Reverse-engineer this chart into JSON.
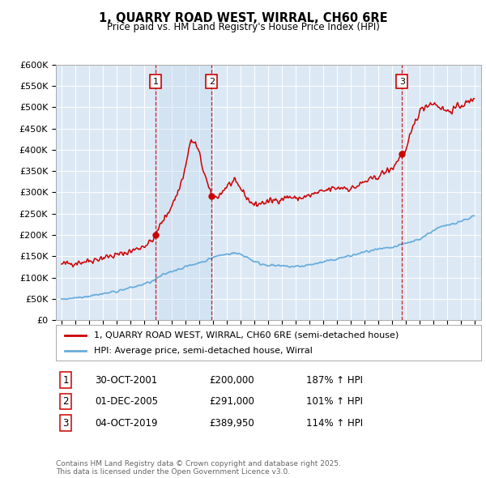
{
  "title": "1, QUARRY ROAD WEST, WIRRAL, CH60 6RE",
  "subtitle": "Price paid vs. HM Land Registry's House Price Index (HPI)",
  "ylim": [
    0,
    600000
  ],
  "yticks": [
    0,
    50000,
    100000,
    150000,
    200000,
    250000,
    300000,
    350000,
    400000,
    450000,
    500000,
    550000,
    600000
  ],
  "ytick_labels": [
    "£0",
    "£50K",
    "£100K",
    "£150K",
    "£200K",
    "£250K",
    "£300K",
    "£350K",
    "£400K",
    "£450K",
    "£500K",
    "£550K",
    "£600K"
  ],
  "background_color": "#ffffff",
  "plot_bg_color": "#dce9f5",
  "grid_color": "#ffffff",
  "sale_color": "#cc0000",
  "hpi_color": "#6aaddc",
  "vline_color": "#cc0000",
  "shade_color": "#c5d9ed",
  "transactions": [
    {
      "label": 1,
      "date_num": 2001.83,
      "price": 200000
    },
    {
      "label": 2,
      "date_num": 2005.92,
      "price": 291000
    },
    {
      "label": 3,
      "date_num": 2019.75,
      "price": 389950
    }
  ],
  "legend_sale_label": "1, QUARRY ROAD WEST, WIRRAL, CH60 6RE (semi-detached house)",
  "legend_hpi_label": "HPI: Average price, semi-detached house, Wirral",
  "table_rows": [
    {
      "num": 1,
      "date": "30-OCT-2001",
      "price": "£200,000",
      "hpi": "187% ↑ HPI"
    },
    {
      "num": 2,
      "date": "01-DEC-2005",
      "price": "£291,000",
      "hpi": "101% ↑ HPI"
    },
    {
      "num": 3,
      "date": "04-OCT-2019",
      "price": "£389,950",
      "hpi": "114% ↑ HPI"
    }
  ],
  "footer": "Contains HM Land Registry data © Crown copyright and database right 2025.\nThis data is licensed under the Open Government Licence v3.0.",
  "xlim_start": 1994.6,
  "xlim_end": 2025.5,
  "hpi_points_x": [
    1995.0,
    1995.5,
    1996.0,
    1996.5,
    1997.0,
    1997.5,
    1998.0,
    1998.5,
    1999.0,
    1999.5,
    2000.0,
    2000.5,
    2001.0,
    2001.5,
    2001.83,
    2002.0,
    2002.5,
    2003.0,
    2003.5,
    2004.0,
    2004.5,
    2005.0,
    2005.5,
    2005.92,
    2006.0,
    2006.5,
    2007.0,
    2007.5,
    2008.0,
    2008.5,
    2009.0,
    2009.5,
    2010.0,
    2010.5,
    2011.0,
    2011.5,
    2012.0,
    2012.5,
    2013.0,
    2013.5,
    2014.0,
    2014.5,
    2015.0,
    2015.5,
    2016.0,
    2016.5,
    2017.0,
    2017.5,
    2018.0,
    2018.5,
    2019.0,
    2019.5,
    2019.75,
    2020.0,
    2020.5,
    2021.0,
    2021.5,
    2022.0,
    2022.5,
    2023.0,
    2023.5,
    2024.0,
    2024.5,
    2025.0
  ],
  "hpi_points_y": [
    50000,
    51000,
    53000,
    55000,
    57000,
    60000,
    62000,
    65000,
    68000,
    72000,
    76000,
    80000,
    85000,
    90000,
    95000,
    100000,
    108000,
    115000,
    120000,
    125000,
    130000,
    135000,
    140000,
    145000,
    148000,
    152000,
    155000,
    158000,
    155000,
    148000,
    138000,
    132000,
    130000,
    128000,
    127000,
    126000,
    126000,
    127000,
    130000,
    133000,
    136000,
    140000,
    144000,
    148000,
    151000,
    155000,
    160000,
    163000,
    166000,
    168000,
    170000,
    175000,
    178000,
    180000,
    185000,
    190000,
    200000,
    210000,
    218000,
    222000,
    228000,
    232000,
    238000,
    245000
  ],
  "sale_points_x": [
    1995.0,
    1995.5,
    1996.0,
    1996.5,
    1997.0,
    1997.5,
    1998.0,
    1998.5,
    1999.0,
    1999.5,
    2000.0,
    2000.5,
    2001.0,
    2001.5,
    2001.83,
    2002.0,
    2002.5,
    2003.0,
    2003.5,
    2004.0,
    2004.3,
    2004.5,
    2004.7,
    2005.0,
    2005.3,
    2005.5,
    2005.7,
    2005.92,
    2006.0,
    2006.5,
    2007.0,
    2007.5,
    2008.0,
    2008.5,
    2009.0,
    2009.5,
    2010.0,
    2010.5,
    2011.0,
    2011.5,
    2012.0,
    2012.5,
    2013.0,
    2013.5,
    2014.0,
    2014.5,
    2015.0,
    2015.5,
    2016.0,
    2016.5,
    2017.0,
    2017.5,
    2018.0,
    2018.5,
    2019.0,
    2019.5,
    2019.75,
    2020.0,
    2020.3,
    2020.6,
    2021.0,
    2021.5,
    2022.0,
    2022.5,
    2023.0,
    2023.5,
    2024.0,
    2024.5,
    2025.0
  ],
  "sale_points_y": [
    132000,
    133000,
    135000,
    137000,
    140000,
    143000,
    147000,
    150000,
    153000,
    157000,
    162000,
    168000,
    175000,
    185000,
    200000,
    215000,
    240000,
    270000,
    305000,
    360000,
    415000,
    420000,
    415000,
    390000,
    350000,
    330000,
    305000,
    291000,
    285000,
    295000,
    315000,
    325000,
    310000,
    285000,
    270000,
    275000,
    278000,
    282000,
    285000,
    290000,
    285000,
    288000,
    292000,
    298000,
    302000,
    308000,
    310000,
    312000,
    308000,
    315000,
    325000,
    330000,
    338000,
    348000,
    355000,
    380000,
    389950,
    395000,
    430000,
    460000,
    490000,
    505000,
    510000,
    500000,
    490000,
    495000,
    505000,
    510000,
    520000
  ]
}
